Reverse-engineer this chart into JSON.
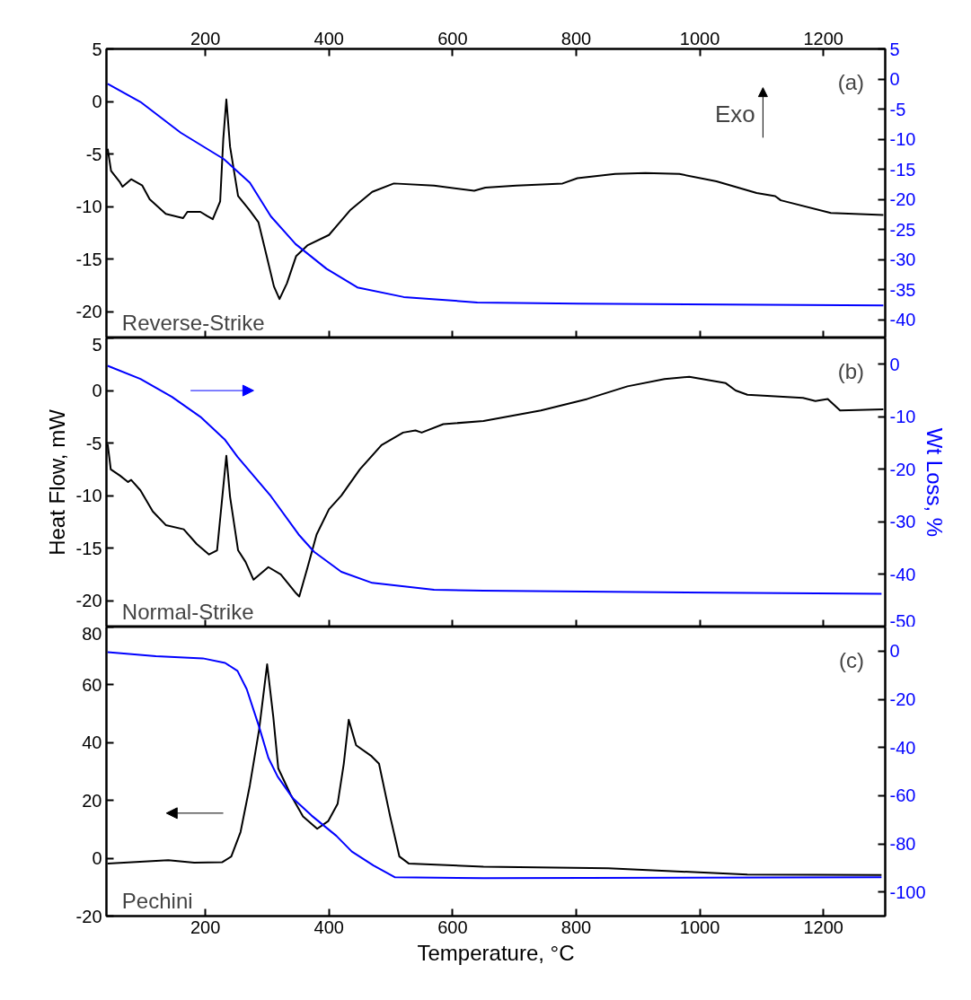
{
  "chart_data": [
    {
      "type": "line",
      "xlim": [
        40,
        1300
      ],
      "xticks": [
        200,
        400,
        600,
        800,
        1000,
        1200
      ],
      "tick_labels": "y",
      "x2lim": [
        40,
        1300
      ],
      "x2ticks": [
        200,
        400,
        600,
        800,
        1000,
        1200
      ],
      "ylim": [
        -22.5,
        5
      ],
      "yticks": [
        5,
        0,
        -5,
        -10,
        -15,
        -20
      ],
      "y2lim": [
        -43,
        5
      ],
      "y2ticks": [
        5,
        0,
        -5,
        -10,
        -15,
        -20,
        -25,
        -30,
        -35,
        -40
      ],
      "annotations": [
        "(a)",
        "Exo",
        "Reverse-Strike"
      ],
      "series": [
        {
          "color": "#000000",
          "x": [
            42,
            47.5,
            62,
            66,
            80,
            98,
            110,
            136,
            164,
            171,
            192,
            203,
            212,
            224,
            229,
            234,
            240,
            253,
            271,
            286,
            298,
            311,
            320,
            332,
            347,
            365,
            400,
            435,
            470,
            505,
            570,
            635,
            653,
            703,
            778,
            802,
            863,
            912,
            967,
            1027,
            1092,
            1122,
            1131,
            1212,
            1297
          ],
          "values": [
            -4.5,
            -6.6,
            -7.7,
            -8.1,
            -7.4,
            -8.0,
            -9.3,
            -10.7,
            -11.1,
            -10.5,
            -10.5,
            -10.9,
            -11.2,
            -9.5,
            -3.6,
            0.2,
            -4.3,
            -9.0,
            -10.3,
            -11.5,
            -14.4,
            -17.6,
            -18.8,
            -17.3,
            -14.7,
            -13.7,
            -12.7,
            -10.3,
            -8.6,
            -7.8,
            -8.0,
            -8.5,
            -8.2,
            -8.0,
            -7.8,
            -7.3,
            -6.9,
            -6.8,
            -6.9,
            -7.6,
            -8.7,
            -9.0,
            -9.4,
            -10.6,
            -10.8
          ]
        },
        {
          "color": "#0000ff",
          "axis": "y2",
          "x": [
            42,
            95,
            160,
            230,
            272,
            306,
            346,
            396,
            446,
            521,
            640,
            802,
            1297
          ],
          "values": [
            -0.8,
            -3.8,
            -8.9,
            -13.3,
            -17.2,
            -22.8,
            -27.4,
            -31.5,
            -34.6,
            -36.2,
            -37.1,
            -37.3,
            -37.6
          ]
        }
      ]
    },
    {
      "type": "line",
      "xlim": [
        40,
        1300
      ],
      "xticks": [
        200,
        400,
        600,
        800,
        1000,
        1200
      ],
      "tick_labels": "y",
      "ylim": [
        -22.5,
        5
      ],
      "yticks": [
        5,
        0,
        -5,
        -10,
        -15,
        -20
      ],
      "y2lim": [
        -50,
        5
      ],
      "y2ticks": [
        0,
        -10,
        -20,
        -30,
        -40,
        -50
      ],
      "ylabel": "Heat Flow, mW",
      "y2label": "Wt Loss, %",
      "annotations": [
        "(b)",
        "Normal-Strike"
      ],
      "series": [
        {
          "color": "#000000",
          "x": [
            42,
            47,
            62,
            75,
            80,
            95,
            115,
            136,
            165,
            186,
            206,
            219,
            228,
            234,
            240,
            253,
            265,
            278,
            302,
            322,
            347,
            352,
            365,
            380,
            400,
            420,
            450,
            485,
            520,
            540,
            550,
            585,
            650,
            743,
            818,
            883,
            943,
            983,
            1042,
            1058,
            1077,
            1167,
            1187,
            1207,
            1227,
            1297
          ],
          "values": [
            -5.1,
            -7.5,
            -8.1,
            -8.7,
            -8.5,
            -9.5,
            -11.5,
            -12.8,
            -13.2,
            -14.6,
            -15.6,
            -15.2,
            -9.8,
            -6.2,
            -10.1,
            -15.2,
            -16.3,
            -18.0,
            -16.8,
            -17.5,
            -19.3,
            -19.6,
            -16.9,
            -13.7,
            -11.3,
            -10.0,
            -7.5,
            -5.2,
            -4.0,
            -3.8,
            -4.0,
            -3.2,
            -2.9,
            -1.9,
            -0.8,
            0.4,
            1.1,
            1.3,
            0.7,
            0.0,
            -0.4,
            -0.7,
            -1.0,
            -0.8,
            -1.9,
            -1.8
          ]
        },
        {
          "color": "#0000ff",
          "axis": "y2",
          "x": [
            42,
            95,
            146,
            192,
            232,
            252,
            306,
            351,
            376,
            420,
            470,
            570,
            650,
            1294
          ],
          "values": [
            -0.3,
            -2.8,
            -6.2,
            -10.0,
            -14.4,
            -17.6,
            -25.1,
            -32.4,
            -35.7,
            -39.5,
            -41.6,
            -42.9,
            -43.1,
            -43.7
          ]
        }
      ]
    },
    {
      "type": "line",
      "xlim": [
        40,
        1300
      ],
      "xticks": [
        200,
        400,
        600,
        800,
        1000,
        1200
      ],
      "xlabel": "Temperature, °C",
      "ylim": [
        -20,
        80
      ],
      "yticks": [
        80,
        60,
        40,
        20,
        0,
        -20
      ],
      "y2lim": [
        -110,
        10
      ],
      "y2ticks": [
        0,
        -20,
        -40,
        -60,
        -80,
        -100
      ],
      "annotations": [
        "(c)",
        "Pechini"
      ],
      "series": [
        {
          "color": "#000000",
          "x": [
            42,
            140,
            182,
            227,
            242,
            257,
            272,
            287,
            300,
            310,
            318,
            338,
            358,
            381,
            399,
            414,
            424,
            432,
            444,
            469,
            481,
            499,
            514,
            529,
            650,
            852,
            1077,
            1294
          ],
          "values": [
            -1.8,
            -0.7,
            -1.5,
            -1.4,
            0.6,
            9.1,
            25.2,
            44.5,
            67.1,
            48.8,
            31.1,
            22.0,
            14.5,
            10.2,
            12.9,
            18.8,
            32.7,
            47.9,
            39.1,
            35.3,
            32.7,
            14.5,
            0.6,
            -1.8,
            -2.9,
            -3.5,
            -5.6,
            -5.8
          ]
        },
        {
          "color": "#0000ff",
          "axis": "y2",
          "x": [
            42,
            120,
            196,
            232,
            252,
            267,
            287,
            302,
            317,
            342,
            372,
            412,
            437,
            472,
            507,
            650,
            1294
          ],
          "values": [
            -0.4,
            -2.1,
            -3.0,
            -4.9,
            -8.2,
            -15.8,
            -31.4,
            -44.3,
            -52.1,
            -61.2,
            -68.3,
            -76.7,
            -83.2,
            -89.0,
            -93.9,
            -94.3,
            -93.9
          ]
        }
      ]
    }
  ]
}
